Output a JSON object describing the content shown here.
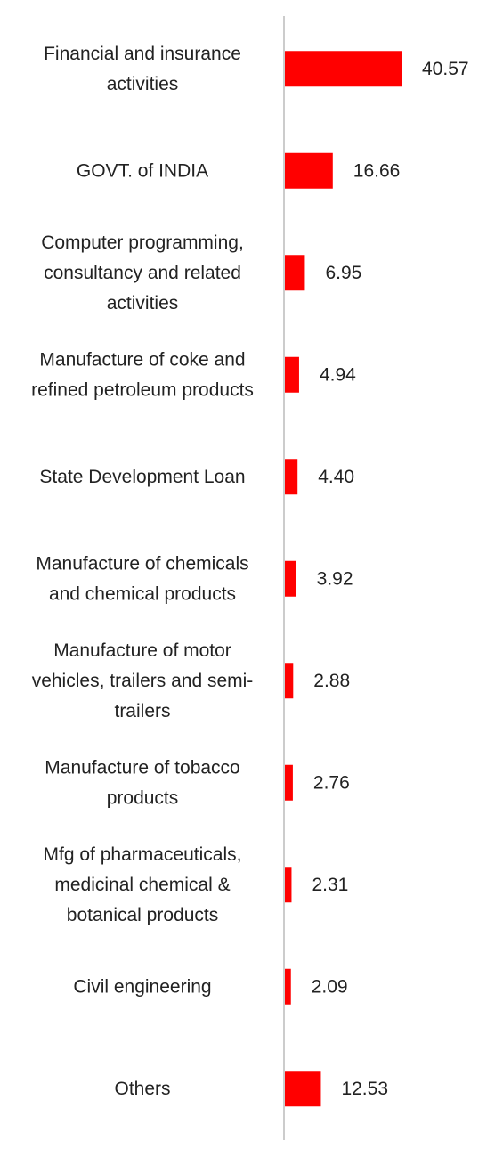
{
  "chart_data": {
    "type": "bar",
    "orientation": "horizontal",
    "title": "",
    "xlabel": "",
    "ylabel": "",
    "grid": false,
    "legend": "none",
    "bar_color": "#ff0000",
    "axis_color": "#cccccc",
    "categories": [
      "Financial and insurance activities",
      "GOVT. of INDIA",
      "Computer programming, consultancy and related activities",
      "Manufacture of coke and refined petroleum products",
      "State Development Loan",
      "Manufacture of chemicals and chemical products",
      "Manufacture of motor vehicles, trailers and semi-trailers",
      "Manufacture of tobacco products",
      "Mfg of pharmaceuticals, medicinal chemical & botanical products",
      "Civil engineering",
      "Others"
    ],
    "category_lines": [
      [
        "Financial and insurance",
        "activities"
      ],
      [
        "GOVT. of INDIA"
      ],
      [
        "Computer programming,",
        "consultancy and related",
        "activities"
      ],
      [
        "Manufacture of coke and",
        "refined petroleum products"
      ],
      [
        "State Development Loan"
      ],
      [
        "Manufacture of chemicals",
        "and chemical products"
      ],
      [
        "Manufacture of motor",
        "vehicles, trailers and semi-",
        "trailers"
      ],
      [
        "Manufacture of tobacco",
        "products"
      ],
      [
        "Mfg of pharmaceuticals,",
        "medicinal chemical &",
        "botanical products"
      ],
      [
        "Civil engineering"
      ],
      [
        "Others"
      ]
    ],
    "values": [
      40.57,
      16.66,
      6.95,
      4.94,
      4.4,
      3.92,
      2.88,
      2.76,
      2.31,
      2.09,
      12.53
    ],
    "value_labels": [
      "40.57",
      "16.66",
      "6.95",
      "4.94",
      "4.40",
      "3.92",
      "2.88",
      "2.76",
      "2.31",
      "2.09",
      "12.53"
    ]
  }
}
